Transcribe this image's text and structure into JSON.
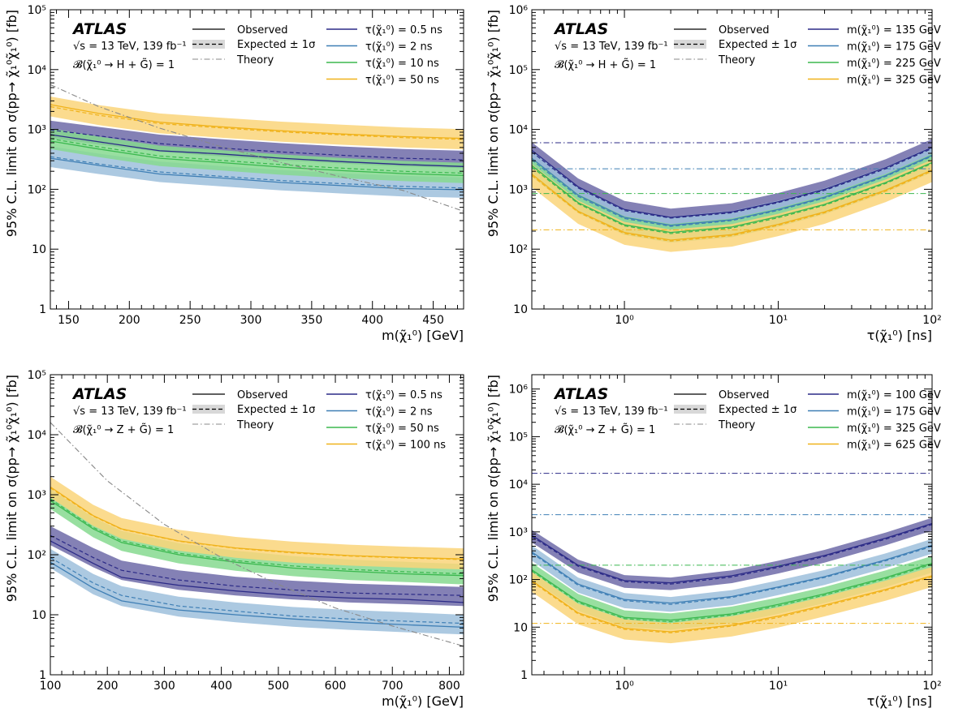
{
  "chart_data": [
    {
      "type": "area",
      "atlas_label": "ATLAS",
      "energy_text": "√s = 13 TeV, 139 fb⁻¹",
      "branching_text": "𝓑(χ̃₁⁰ → H + G̃) = 1",
      "xlabel": "m(χ̃₁⁰) [GeV]",
      "ylabel": "95% C.L. limit on σ(pp→ χ̃₁⁰χ̃₁⁰) [fb]",
      "xscale": "linear",
      "yscale": "log",
      "xlim": [
        135,
        475
      ],
      "ylim": [
        1,
        100000
      ],
      "xticks": [
        150,
        200,
        250,
        300,
        350,
        400,
        450
      ],
      "xtick_labels": [
        "150",
        "200",
        "250",
        "300",
        "350",
        "400",
        "450"
      ],
      "ytick_labels": [
        "1",
        "10",
        "10²",
        "10³",
        "10⁴",
        "10⁵"
      ],
      "style_legend": [
        "Observed",
        "Expected ± 1σ",
        "Theory"
      ],
      "x": [
        135,
        175,
        225,
        275,
        325,
        375,
        425,
        475
      ],
      "series": [
        {
          "name": "τ(χ̃₁⁰) = 0.5 ns",
          "color": "#2b2a87",
          "band": "#6f6ba8",
          "observed": [
            820,
            620,
            440,
            390,
            330,
            290,
            260,
            240
          ],
          "expected": [
            980,
            780,
            580,
            490,
            420,
            370,
            330,
            310
          ],
          "band_lo": [
            720,
            560,
            420,
            355,
            305,
            270,
            240,
            225
          ],
          "band_hi": [
            1400,
            1100,
            820,
            690,
            590,
            520,
            470,
            440
          ]
        },
        {
          "name": "τ(χ̃₁⁰) = 2 ns",
          "color": "#3f7fb5",
          "band": "#9dbfdc",
          "observed": [
            330,
            250,
            180,
            155,
            130,
            115,
            103,
            98
          ],
          "expected": [
            350,
            265,
            195,
            165,
            140,
            124,
            112,
            105
          ],
          "band_lo": [
            235,
            180,
            132,
            112,
            96,
            85,
            76,
            72
          ],
          "band_hi": [
            520,
            395,
            290,
            245,
            210,
            185,
            168,
            158
          ]
        },
        {
          "name": "τ(χ̃₁⁰) = 10 ns",
          "color": "#3bb84f",
          "band": "#86d98f",
          "observed": [
            640,
            470,
            330,
            280,
            235,
            205,
            183,
            170
          ],
          "expected": [
            700,
            510,
            360,
            305,
            258,
            225,
            200,
            186
          ],
          "band_lo": [
            470,
            345,
            245,
            207,
            175,
            153,
            137,
            127
          ],
          "band_hi": [
            1040,
            760,
            535,
            452,
            383,
            335,
            298,
            277
          ]
        },
        {
          "name": "τ(χ̃₁⁰) = 50 ns",
          "color": "#f0b21a",
          "band": "#fad57a",
          "observed": [
            2600,
            1850,
            1320,
            1110,
            950,
            840,
            760,
            710
          ],
          "expected": [
            2400,
            1720,
            1250,
            1060,
            910,
            810,
            730,
            680
          ],
          "band_lo": [
            1650,
            1180,
            860,
            730,
            625,
            555,
            500,
            465
          ],
          "band_hi": [
            3550,
            2550,
            1850,
            1570,
            1350,
            1200,
            1080,
            1010
          ]
        }
      ],
      "theory": {
        "name": "Theory",
        "color": "#888888",
        "x": [
          135,
          175,
          225,
          275,
          325,
          375,
          425,
          475
        ],
        "y": [
          5600,
          2400,
          1050,
          520,
          280,
          160,
          96,
          43
        ]
      }
    },
    {
      "type": "area",
      "atlas_label": "ATLAS",
      "energy_text": "√s = 13 TeV, 139 fb⁻¹",
      "branching_text": "𝓑(χ̃₁⁰ → H + G̃) = 1",
      "xlabel": "τ(χ̃₁⁰) [ns]",
      "ylabel": "95% C.L. limit on σ(pp→ χ̃₁⁰χ̃₁⁰) [fb]",
      "xscale": "log",
      "yscale": "log",
      "xlim": [
        0.25,
        100
      ],
      "ylim": [
        10,
        1000000
      ],
      "xtick_labels": [
        "10⁰",
        "10¹",
        "10²"
      ],
      "ytick_labels": [
        "10",
        "10²",
        "10³",
        "10⁴",
        "10⁵",
        "10⁶"
      ],
      "style_legend": [
        "Observed",
        "Expected ± 1σ",
        "Theory"
      ],
      "x": [
        0.25,
        0.5,
        1,
        2,
        5,
        10,
        20,
        50,
        100
      ],
      "series": [
        {
          "name": "m(χ̃₁⁰) = 135 GeV",
          "color": "#2b2a87",
          "band": "#6f6ba8",
          "observed": [
            4500,
            1100,
            460,
            340,
            420,
            620,
            1000,
            2300,
            5000
          ],
          "expected": [
            4200,
            1050,
            440,
            330,
            405,
            600,
            960,
            2200,
            4800
          ],
          "band_lo": [
            2900,
            740,
            310,
            235,
            290,
            430,
            690,
            1580,
            3450
          ],
          "band_hi": [
            6100,
            1520,
            640,
            475,
            585,
            865,
            1390,
            3180,
            6900
          ],
          "theory": 6000
        },
        {
          "name": "m(χ̃₁⁰) = 175 GeV",
          "color": "#3f7fb5",
          "band": "#9dbfdc",
          "observed": [
            3300,
            800,
            340,
            250,
            310,
            460,
            740,
            1700,
            3700
          ],
          "expected": [
            3100,
            760,
            325,
            240,
            300,
            445,
            715,
            1640,
            3570
          ],
          "band_lo": [
            2150,
            530,
            228,
            170,
            212,
            315,
            505,
            1160,
            2520
          ],
          "band_hi": [
            4500,
            1100,
            470,
            348,
            433,
            645,
            1035,
            2370,
            5160
          ],
          "theory": 2200
        },
        {
          "name": "m(χ̃₁⁰) = 225 GeV",
          "color": "#3bb84f",
          "band": "#86d98f",
          "observed": [
            2500,
            600,
            255,
            190,
            235,
            350,
            560,
            1300,
            2800
          ],
          "expected": [
            2350,
            575,
            245,
            182,
            225,
            335,
            540,
            1250,
            2700
          ],
          "band_lo": [
            1620,
            400,
            172,
            128,
            158,
            236,
            381,
            882,
            1905
          ],
          "band_hi": [
            3400,
            835,
            355,
            263,
            326,
            486,
            783,
            1810,
            3910
          ],
          "theory": 850
        },
        {
          "name": "m(χ̃₁⁰) = 325 GeV",
          "color": "#f0b21a",
          "band": "#fad57a",
          "observed": [
            1800,
            430,
            190,
            142,
            175,
            260,
            420,
            970,
            2100
          ],
          "expected": [
            1700,
            415,
            182,
            136,
            168,
            250,
            405,
            935,
            2020
          ],
          "band_lo": [
            1080,
            265,
            118,
            90,
            110,
            165,
            265,
            612,
            1320
          ],
          "band_hi": [
            2650,
            650,
            285,
            213,
            262,
            390,
            632,
            1460,
            3150
          ],
          "theory": 210
        }
      ]
    },
    {
      "type": "area",
      "atlas_label": "ATLAS",
      "energy_text": "√s = 13 TeV, 139 fb⁻¹",
      "branching_text": "𝓑(χ̃₁⁰ → Z + G̃) = 1",
      "xlabel": "m(χ̃₁⁰) [GeV]",
      "ylabel": "95% C.L. limit on σ(pp→ χ̃₁⁰χ̃₁⁰) [fb]",
      "xscale": "linear",
      "yscale": "log",
      "xlim": [
        100,
        825
      ],
      "ylim": [
        1,
        100000
      ],
      "xticks": [
        100,
        200,
        300,
        400,
        500,
        600,
        700,
        800
      ],
      "xtick_labels": [
        "100",
        "200",
        "300",
        "400",
        "500",
        "600",
        "700",
        "800"
      ],
      "ytick_labels": [
        "1",
        "10",
        "10²",
        "10³",
        "10⁴",
        "10⁵"
      ],
      "style_legend": [
        "Observed",
        "Expected ± 1σ",
        "Theory"
      ],
      "x": [
        100,
        175,
        225,
        325,
        425,
        525,
        625,
        725,
        825
      ],
      "series": [
        {
          "name": "τ(χ̃₁⁰) = 0.5 ns",
          "color": "#2b2a87",
          "band": "#6f6ba8",
          "observed": [
            170,
            72,
            42,
            31,
            25,
            21,
            19,
            18,
            16
          ],
          "expected": [
            210,
            90,
            55,
            38,
            30,
            26,
            23,
            22,
            21
          ],
          "band_lo": [
            145,
            62,
            38,
            26,
            21,
            18,
            16,
            15,
            14
          ],
          "band_hi": [
            300,
            130,
            80,
            55,
            43,
            37,
            33,
            31,
            29
          ]
        },
        {
          "name": "τ(χ̃₁⁰) = 2 ns",
          "color": "#3f7fb5",
          "band": "#9dbfdc",
          "observed": [
            75,
            28,
            17,
            12,
            10,
            8.5,
            7.5,
            6.8,
            6.2
          ],
          "expected": [
            90,
            34,
            21,
            14,
            11.5,
            9.5,
            8.5,
            7.8,
            7.2
          ],
          "band_lo": [
            60,
            22,
            14,
            9.3,
            7.5,
            6.3,
            5.6,
            5.1,
            4.7
          ],
          "band_hi": [
            125,
            48,
            30,
            20,
            16,
            13.5,
            12,
            11,
            10
          ]
        },
        {
          "name": "τ(χ̃₁⁰) = 50 ns",
          "color": "#3bb84f",
          "band": "#86d98f",
          "observed": [
            800,
            270,
            160,
            100,
            75,
            60,
            53,
            48,
            45
          ],
          "expected": [
            850,
            285,
            170,
            106,
            80,
            65,
            57,
            52,
            48
          ],
          "band_lo": [
            580,
            195,
            116,
            72,
            54,
            44,
            38,
            35,
            32
          ],
          "band_hi": [
            1250,
            420,
            250,
            156,
            117,
            95,
            83,
            76,
            70
          ]
        },
        {
          "name": "τ(χ̃₁⁰) = 100 ns",
          "color": "#f0b21a",
          "band": "#fad57a",
          "observed": [
            1350,
            450,
            270,
            170,
            130,
            110,
            97,
            90,
            85
          ],
          "expected": [
            1300,
            440,
            265,
            168,
            128,
            107,
            95,
            88,
            83
          ],
          "band_lo": [
            900,
            305,
            185,
            117,
            89,
            74,
            66,
            61,
            57
          ],
          "band_hi": [
            2000,
            680,
            410,
            260,
            198,
            165,
            147,
            136,
            128
          ]
        }
      ],
      "theory": {
        "name": "Theory",
        "color": "#888888",
        "x": [
          100,
          200,
          300,
          400,
          500,
          600,
          700,
          800,
          825
        ],
        "y": [
          16000,
          1700,
          320,
          90,
          32,
          13,
          6.5,
          3.5,
          3
        ]
      }
    },
    {
      "type": "area",
      "atlas_label": "ATLAS",
      "energy_text": "√s = 13 TeV, 139 fb⁻¹",
      "branching_text": "𝓑(χ̃₁⁰ → Z + G̃) = 1",
      "xlabel": "τ(χ̃₁⁰) [ns]",
      "ylabel": "95% C.L. limit on σ(pp→ χ̃₁⁰χ̃₁⁰) [fb]",
      "xscale": "log",
      "yscale": "log",
      "xlim": [
        0.25,
        100
      ],
      "ylim": [
        1,
        2000000
      ],
      "xtick_labels": [
        "10⁰",
        "10¹",
        "10²"
      ],
      "ytick_labels": [
        "1",
        "10",
        "10²",
        "10³",
        "10⁴",
        "10⁵",
        "10⁶"
      ],
      "style_legend": [
        "Observed",
        "Expected ± 1σ",
        "Theory"
      ],
      "x": [
        0.25,
        0.5,
        1,
        2,
        5,
        10,
        20,
        50,
        100
      ],
      "series": [
        {
          "name": "m(χ̃₁⁰) = 100 GeV",
          "color": "#2b2a87",
          "band": "#6f6ba8",
          "observed": [
            850,
            200,
            95,
            85,
            120,
            190,
            320,
            740,
            1500
          ],
          "expected": [
            800,
            190,
            90,
            80,
            113,
            180,
            305,
            705,
            1430
          ],
          "band_lo": [
            600,
            140,
            67,
            60,
            84,
            134,
            227,
            525,
            1065
          ],
          "band_hi": [
            1100,
            262,
            124,
            110,
            156,
            248,
            420,
            970,
            1970
          ],
          "theory": 17000
        },
        {
          "name": "m(χ̃₁⁰) = 175 GeV",
          "color": "#3f7fb5",
          "band": "#9dbfdc",
          "observed": [
            380,
            80,
            38,
            32,
            44,
            70,
            115,
            260,
            520
          ],
          "expected": [
            360,
            76,
            36,
            30,
            42,
            67,
            110,
            248,
            495
          ],
          "band_lo": [
            250,
            53,
            25,
            21,
            29,
            47,
            77,
            174,
            347
          ],
          "band_hi": [
            520,
            110,
            52,
            43,
            60,
            96,
            158,
            356,
            712
          ],
          "theory": 2300
        },
        {
          "name": "m(χ̃₁⁰) = 325 GeV",
          "color": "#3bb84f",
          "band": "#86d98f",
          "observed": [
            160,
            35,
            16,
            14,
            19,
            30,
            50,
            110,
            220
          ],
          "expected": [
            150,
            33,
            15,
            13,
            18,
            28,
            47,
            104,
            208
          ],
          "band_lo": [
            100,
            22,
            10,
            8.8,
            12,
            19,
            32,
            70,
            140
          ],
          "band_hi": [
            225,
            50,
            22.5,
            19.5,
            27,
            42,
            70,
            156,
            312
          ],
          "theory": 200
        },
        {
          "name": "m(χ̃₁⁰) = 625 GeV",
          "color": "#f0b21a",
          "band": "#fad57a",
          "observed": [
            95,
            20,
            9.5,
            8,
            11,
            17,
            29,
            62,
            120
          ],
          "expected": [
            90,
            19,
            9,
            7.6,
            10.5,
            16,
            27.5,
            59,
            114
          ],
          "band_lo": [
            55,
            11.5,
            5.5,
            4.6,
            6.4,
            9.8,
            16.8,
            36,
            70
          ],
          "band_hi": [
            145,
            31,
            14.5,
            12.2,
            17,
            26,
            44,
            95,
            184
          ],
          "theory": 12
        }
      ]
    }
  ]
}
